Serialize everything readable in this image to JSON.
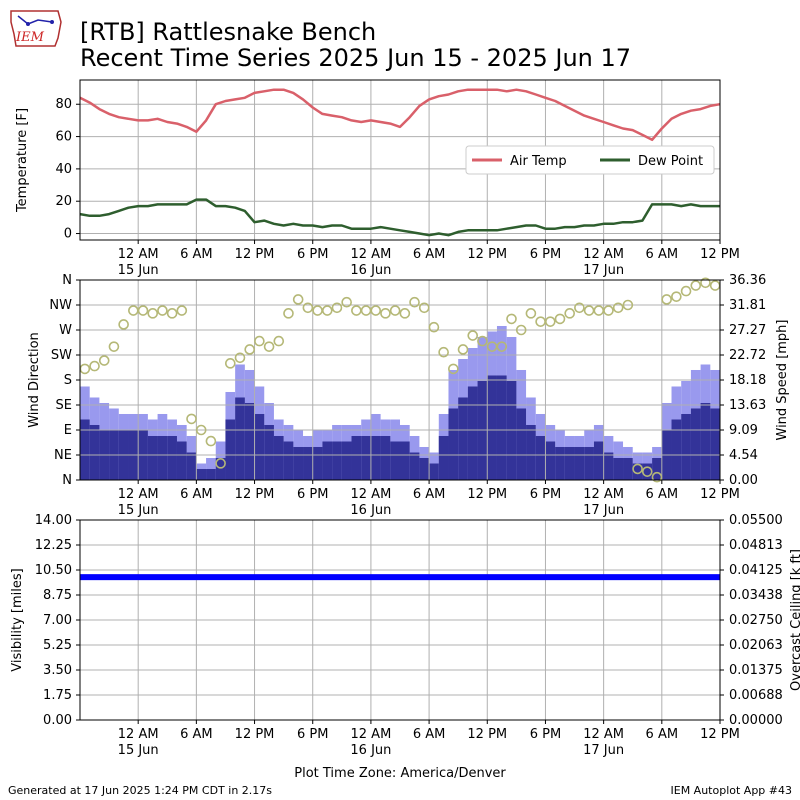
{
  "header": {
    "logo_text": "IEM",
    "title_line1": "[RTB] Rattlesnake Bench",
    "title_line2": "Recent Time Series 2025 Jun 15 - 2025 Jun 17"
  },
  "footer": {
    "generated": "Generated at 17 Jun 2025 1:24 PM CDT in 2.17s",
    "app": "IEM Autoplot App #43"
  },
  "colors": {
    "air_temp": "#d9606a",
    "dew_point": "#2e5e2e",
    "wind_gust": "#9999ee",
    "wind_speed": "#333399",
    "wind_dir": "#b5b877",
    "visibility": "#0000ff",
    "ceiling_label": "#008000",
    "grid": "#b0b0b0"
  },
  "time_axis": {
    "tick_labels": [
      "12 AM",
      "6 AM",
      "12 PM",
      "6 PM",
      "12 AM",
      "6 AM",
      "12 PM",
      "6 PM",
      "12 AM",
      "6 AM",
      "12 PM"
    ],
    "tick_hours": [
      6,
      12,
      18,
      24,
      30,
      36,
      42,
      48,
      54,
      60,
      66
    ],
    "date_labels": [
      {
        "label": "15 Jun",
        "hour": 6
      },
      {
        "label": "16 Jun",
        "hour": 30
      },
      {
        "label": "17 Jun",
        "hour": 54
      }
    ],
    "range_hours": [
      0,
      66
    ],
    "xlabel": "Plot Time Zone: America/Denver"
  },
  "chart_data": [
    {
      "type": "line",
      "name": "temperature-panel",
      "ylabel": "Temperature [F]",
      "ylim": [
        -4,
        95
      ],
      "yticks": [
        0,
        20,
        40,
        60,
        80
      ],
      "grid": true,
      "legend": "center-right",
      "series": [
        {
          "name": "Air Temp",
          "x": [
            0,
            1,
            2,
            3,
            4,
            5,
            6,
            7,
            8,
            9,
            10,
            11,
            12,
            13,
            14,
            15,
            16,
            17,
            18,
            19,
            20,
            21,
            22,
            23,
            24,
            25,
            26,
            27,
            28,
            29,
            30,
            31,
            32,
            33,
            34,
            35,
            36,
            37,
            38,
            39,
            40,
            41,
            42,
            43,
            44,
            45,
            46,
            47,
            48,
            49,
            50,
            51,
            52,
            53,
            54,
            55,
            56,
            57,
            58,
            59,
            60,
            61,
            62,
            63,
            64,
            65,
            66
          ],
          "values": [
            84,
            81,
            77,
            74,
            72,
            71,
            70,
            70,
            71,
            69,
            68,
            66,
            63,
            70,
            80,
            82,
            83,
            84,
            87,
            88,
            89,
            89,
            87,
            83,
            78,
            74,
            73,
            72,
            70,
            69,
            70,
            69,
            68,
            66,
            72,
            79,
            83,
            85,
            86,
            88,
            89,
            89,
            89,
            89,
            88,
            89,
            88,
            86,
            84,
            82,
            79,
            76,
            73,
            71,
            69,
            67,
            65,
            64,
            61,
            58,
            65,
            71,
            74,
            76,
            77,
            79,
            80
          ]
        },
        {
          "name": "Dew Point",
          "x": [
            0,
            1,
            2,
            3,
            4,
            5,
            6,
            7,
            8,
            9,
            10,
            11,
            12,
            13,
            14,
            15,
            16,
            17,
            18,
            19,
            20,
            21,
            22,
            23,
            24,
            25,
            26,
            27,
            28,
            29,
            30,
            31,
            32,
            33,
            34,
            35,
            36,
            37,
            38,
            39,
            40,
            41,
            42,
            43,
            44,
            45,
            46,
            47,
            48,
            49,
            50,
            51,
            52,
            53,
            54,
            55,
            56,
            57,
            58,
            59,
            60,
            61,
            62,
            63,
            64,
            65,
            66
          ],
          "values": [
            12,
            11,
            11,
            12,
            14,
            16,
            17,
            17,
            18,
            18,
            18,
            18,
            21,
            21,
            17,
            17,
            16,
            14,
            7,
            8,
            6,
            5,
            6,
            5,
            5,
            4,
            5,
            5,
            3,
            3,
            3,
            4,
            3,
            2,
            1,
            0,
            -1,
            0,
            -1,
            1,
            2,
            2,
            2,
            2,
            3,
            4,
            5,
            5,
            3,
            3,
            4,
            4,
            5,
            5,
            6,
            6,
            7,
            7,
            8,
            18,
            18,
            18,
            17,
            18,
            17,
            17,
            17
          ]
        }
      ]
    },
    {
      "type": "bar",
      "name": "wind-panel",
      "ylabel": "Wind Direction",
      "y2label": "Wind Speed [mph]",
      "direction_ticks": [
        "N",
        "NE",
        "E",
        "SE",
        "S",
        "SW",
        "W",
        "NW",
        "N"
      ],
      "direction_ylim": [
        0,
        360
      ],
      "speed_ylim": [
        0,
        36.36
      ],
      "speed_ticks": [
        "0.00",
        "4.54",
        "9.09",
        "13.63",
        "18.18",
        "22.72",
        "27.27",
        "31.81",
        "36.36"
      ],
      "grid": true,
      "series": [
        {
          "name": "Gust",
          "x": [
            0,
            1,
            2,
            3,
            4,
            5,
            6,
            7,
            8,
            9,
            10,
            11,
            12,
            13,
            14,
            15,
            16,
            17,
            18,
            19,
            20,
            21,
            22,
            23,
            24,
            25,
            26,
            27,
            28,
            29,
            30,
            31,
            32,
            33,
            34,
            35,
            36,
            37,
            38,
            39,
            40,
            41,
            42,
            43,
            44,
            45,
            46,
            47,
            48,
            49,
            50,
            51,
            52,
            53,
            54,
            55,
            56,
            57,
            58,
            59,
            60,
            61,
            62,
            63,
            64,
            65
          ],
          "values": [
            17,
            15,
            14,
            13,
            12,
            12,
            12,
            11,
            12,
            11,
            10,
            8,
            3,
            4,
            7,
            16,
            21,
            20,
            17,
            14,
            11,
            10,
            9,
            8,
            9,
            9,
            10,
            10,
            10,
            11,
            12,
            11,
            11,
            10,
            8,
            6,
            5,
            12,
            20,
            22,
            24,
            26,
            27,
            28,
            26,
            20,
            15,
            12,
            10,
            9,
            8,
            8,
            9,
            10,
            8,
            7,
            6,
            5,
            5,
            6,
            14,
            17,
            18,
            20,
            21,
            20
          ]
        },
        {
          "name": "Speed",
          "x": [
            0,
            1,
            2,
            3,
            4,
            5,
            6,
            7,
            8,
            9,
            10,
            11,
            12,
            13,
            14,
            15,
            16,
            17,
            18,
            19,
            20,
            21,
            22,
            23,
            24,
            25,
            26,
            27,
            28,
            29,
            30,
            31,
            32,
            33,
            34,
            35,
            36,
            37,
            38,
            39,
            40,
            41,
            42,
            43,
            44,
            45,
            46,
            47,
            48,
            49,
            50,
            51,
            52,
            53,
            54,
            55,
            56,
            57,
            58,
            59,
            60,
            61,
            62,
            63,
            64,
            65
          ],
          "values": [
            11,
            10,
            9,
            9,
            9,
            9,
            9,
            8,
            8,
            8,
            7,
            5,
            2,
            2,
            4,
            11,
            15,
            14,
            12,
            10,
            8,
            7,
            6,
            6,
            6,
            7,
            7,
            7,
            8,
            8,
            8,
            8,
            7,
            7,
            5,
            4,
            3,
            8,
            13,
            15,
            17,
            18,
            19,
            19,
            18,
            13,
            10,
            8,
            7,
            6,
            6,
            6,
            6,
            7,
            5,
            4,
            4,
            3,
            3,
            4,
            9,
            11,
            12,
            13,
            14,
            13
          ]
        },
        {
          "name": "Direction",
          "x": [
            0,
            1,
            2,
            3,
            4,
            5,
            6,
            7,
            8,
            9,
            10,
            11,
            12,
            13,
            14,
            15,
            16,
            17,
            18,
            19,
            20,
            21,
            22,
            23,
            24,
            25,
            26,
            27,
            28,
            29,
            30,
            31,
            32,
            33,
            34,
            35,
            36,
            37,
            38,
            39,
            40,
            41,
            42,
            43,
            44,
            45,
            46,
            47,
            48,
            49,
            50,
            51,
            52,
            53,
            54,
            55,
            56,
            57,
            58,
            59,
            60,
            61,
            62,
            63,
            64,
            65
          ],
          "values": [
            200,
            205,
            215,
            240,
            280,
            305,
            305,
            300,
            305,
            300,
            305,
            110,
            90,
            70,
            30,
            210,
            220,
            235,
            250,
            240,
            250,
            300,
            325,
            310,
            305,
            305,
            310,
            320,
            305,
            305,
            305,
            300,
            305,
            300,
            320,
            310,
            275,
            230,
            200,
            235,
            260,
            250,
            240,
            240,
            290,
            270,
            300,
            285,
            285,
            290,
            300,
            310,
            305,
            305,
            305,
            310,
            315,
            20,
            15,
            5,
            325,
            330,
            340,
            350,
            355,
            350
          ]
        }
      ]
    },
    {
      "type": "line",
      "name": "visibility-panel",
      "ylabel": "Visibility [miles]",
      "y2label": "Overcast Ceiling [k ft]",
      "ylim": [
        0,
        14
      ],
      "yticks": [
        "0.00",
        "1.75",
        "3.50",
        "5.25",
        "7.00",
        "8.75",
        "10.50",
        "12.25",
        "14.00"
      ],
      "y2lim": [
        0,
        0.055
      ],
      "y2ticks": [
        "0.00000",
        "0.00688",
        "0.01375",
        "0.02063",
        "0.02750",
        "0.03438",
        "0.04125",
        "0.04813",
        "0.05500"
      ],
      "grid": true,
      "series": [
        {
          "x": [
            0,
            66
          ],
          "values": [
            10,
            10
          ]
        }
      ]
    }
  ]
}
